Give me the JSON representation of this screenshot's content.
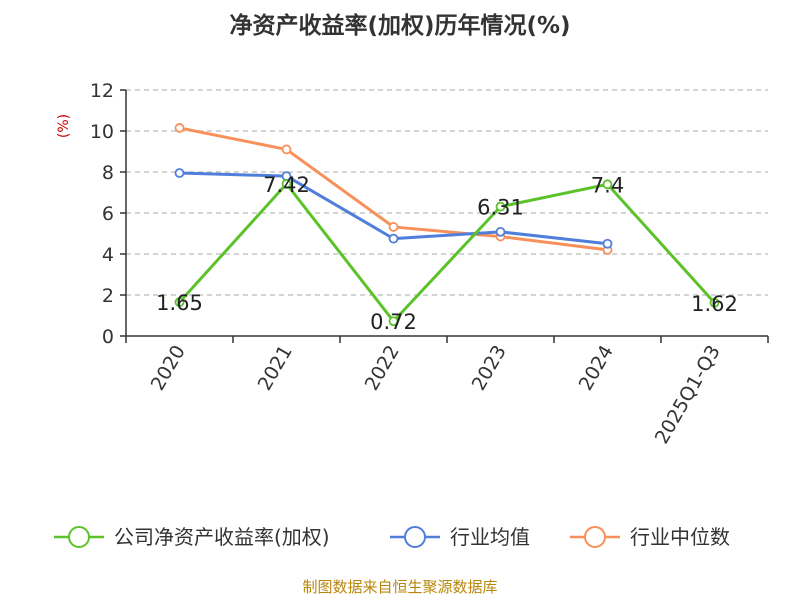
{
  "chart_data": {
    "type": "line",
    "title": "净资产收益率(加权)历年情况(%)",
    "ylabel": "(%)",
    "xlabel": "",
    "categories": [
      "2020",
      "2021",
      "2022",
      "2023",
      "2024",
      "2025Q1-Q3"
    ],
    "ylim": [
      0,
      12
    ],
    "yticks": [
      0,
      2,
      4,
      6,
      8,
      10,
      12
    ],
    "grid": true,
    "legend_position": "bottom",
    "series": [
      {
        "name": "公司净资产收益率(加权)",
        "color": "#5cc22a",
        "values": [
          1.65,
          7.42,
          0.72,
          6.31,
          7.4,
          1.62
        ],
        "data_labels": [
          "1.65",
          "7.42",
          "0.72",
          "6.31",
          "7.4",
          "1.62"
        ]
      },
      {
        "name": "行业均值",
        "color": "#4f7fdb",
        "values": [
          7.95,
          7.8,
          4.75,
          5.08,
          4.5,
          null
        ]
      },
      {
        "name": "行业中位数",
        "color": "#f7905a",
        "values": [
          10.15,
          9.1,
          5.32,
          4.85,
          4.2,
          null
        ]
      }
    ],
    "source": "制图数据来自恒生聚源数据库"
  }
}
